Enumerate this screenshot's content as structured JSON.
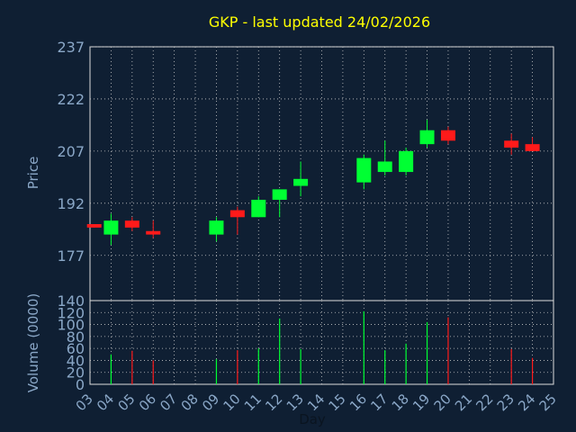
{
  "title": "GKP - last updated 24/02/2026",
  "colors": {
    "background": "#0f1f33",
    "plot": "#0f1f33",
    "title": "#ffff00",
    "axis_text": "#8aa7c7",
    "up": "#00ff33",
    "down": "#ff1a1a",
    "grid": "#c8c8c8"
  },
  "chart_data": [
    {
      "type": "candlestick",
      "ylabel": "Price",
      "ylim": [
        164,
        237
      ],
      "yticks": [
        237,
        222,
        207,
        192,
        177
      ],
      "grid": true,
      "candles": [
        {
          "day": 3.2,
          "open": 186,
          "close": 185,
          "high": 186,
          "low": 185
        },
        {
          "day": 4,
          "open": 183,
          "close": 187,
          "high": 189,
          "low": 180
        },
        {
          "day": 5,
          "open": 187,
          "close": 185,
          "high": 188,
          "low": 184
        },
        {
          "day": 6,
          "open": 184,
          "close": 183,
          "high": 187,
          "low": 182
        },
        {
          "day": 9,
          "open": 183,
          "close": 187,
          "high": 188,
          "low": 181
        },
        {
          "day": 10,
          "open": 190,
          "close": 188,
          "high": 191,
          "low": 183
        },
        {
          "day": 11,
          "open": 188,
          "close": 193,
          "high": 194,
          "low": 188
        },
        {
          "day": 12,
          "open": 193,
          "close": 196,
          "high": 196,
          "low": 188
        },
        {
          "day": 13,
          "open": 197,
          "close": 199,
          "high": 204,
          "low": 194
        },
        {
          "day": 16,
          "open": 198,
          "close": 205,
          "high": 206,
          "low": 196
        },
        {
          "day": 17,
          "open": 201,
          "close": 204,
          "high": 210,
          "low": 200
        },
        {
          "day": 18,
          "open": 201,
          "close": 207,
          "high": 208,
          "low": 200
        },
        {
          "day": 19,
          "open": 209,
          "close": 213,
          "high": 216,
          "low": 208
        },
        {
          "day": 20,
          "open": 213,
          "close": 210,
          "high": 214,
          "low": 209
        },
        {
          "day": 23,
          "open": 210,
          "close": 208,
          "high": 212,
          "low": 206
        },
        {
          "day": 24,
          "open": 209,
          "close": 207,
          "high": 211,
          "low": 207
        }
      ]
    },
    {
      "type": "bar",
      "xlabel": "Day",
      "ylabel": "Volume (0000)",
      "ylim": [
        0,
        140
      ],
      "yticks": [
        140,
        120,
        100,
        80,
        60,
        40,
        20,
        0
      ],
      "x_ticks": [
        "03",
        "04",
        "05",
        "06",
        "07",
        "08",
        "09",
        "10",
        "11",
        "12",
        "13",
        "14",
        "15",
        "16",
        "17",
        "18",
        "19",
        "20",
        "21",
        "22",
        "23",
        "24",
        "25"
      ],
      "grid": true,
      "bars": [
        {
          "day": 4,
          "value": 50,
          "dir": "up"
        },
        {
          "day": 5,
          "value": 56,
          "dir": "down"
        },
        {
          "day": 6,
          "value": 40,
          "dir": "down"
        },
        {
          "day": 9,
          "value": 42,
          "dir": "up"
        },
        {
          "day": 10,
          "value": 57,
          "dir": "down"
        },
        {
          "day": 11,
          "value": 60,
          "dir": "up"
        },
        {
          "day": 12,
          "value": 110,
          "dir": "up"
        },
        {
          "day": 13,
          "value": 59,
          "dir": "up"
        },
        {
          "day": 16,
          "value": 122,
          "dir": "up"
        },
        {
          "day": 17,
          "value": 57,
          "dir": "up"
        },
        {
          "day": 18,
          "value": 68,
          "dir": "up"
        },
        {
          "day": 19,
          "value": 104,
          "dir": "up"
        },
        {
          "day": 20,
          "value": 112,
          "dir": "down"
        },
        {
          "day": 23,
          "value": 59,
          "dir": "down"
        },
        {
          "day": 24,
          "value": 44,
          "dir": "down"
        }
      ]
    }
  ]
}
